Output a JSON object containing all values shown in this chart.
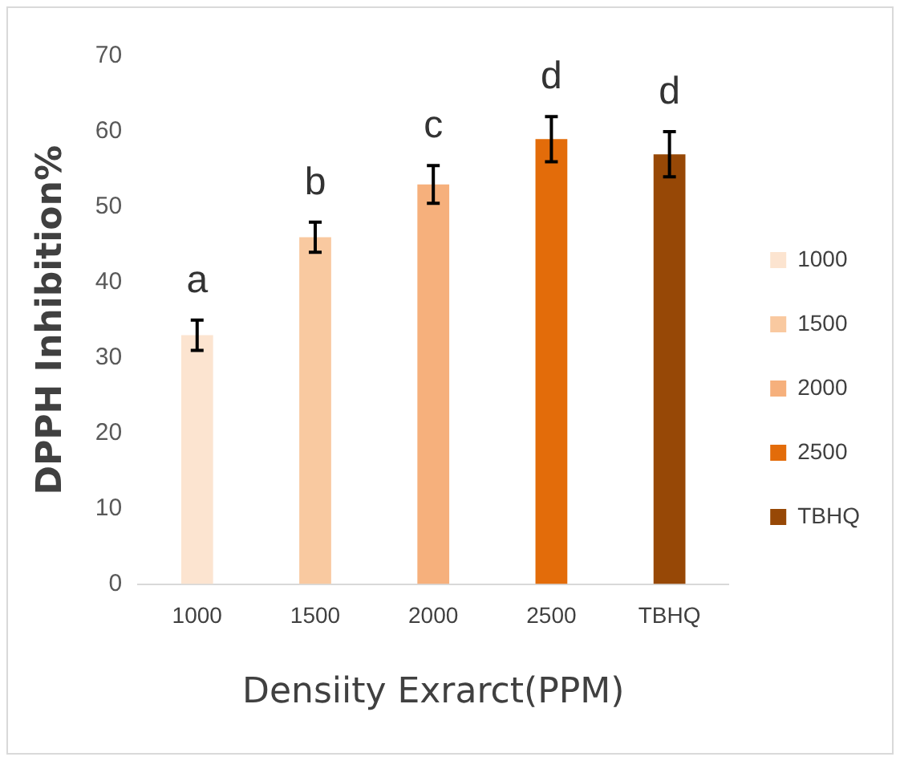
{
  "chart_data": {
    "type": "bar",
    "xlabel": "Densiity Exrarct(PPM)",
    "ylabel": "DPPH Inhibition%",
    "categories": [
      "1000",
      "1500",
      "2000",
      "2500",
      "TBHQ"
    ],
    "series": [
      {
        "name": "1000",
        "color": "#fce4d0",
        "values": [
          33,
          null,
          null,
          null,
          null
        ],
        "errors": [
          2,
          null,
          null,
          null,
          null
        ]
      },
      {
        "name": "1500",
        "color": "#f9c9a0",
        "values": [
          null,
          46,
          null,
          null,
          null
        ],
        "errors": [
          null,
          2,
          null,
          null,
          null
        ]
      },
      {
        "name": "2000",
        "color": "#f6b07c",
        "values": [
          null,
          null,
          53,
          null,
          null
        ],
        "errors": [
          null,
          null,
          2.5,
          null,
          null
        ]
      },
      {
        "name": "2500",
        "color": "#e36c0a",
        "values": [
          null,
          null,
          null,
          59,
          null
        ],
        "errors": [
          null,
          null,
          null,
          3,
          null
        ]
      },
      {
        "name": "TBHQ",
        "color": "#974806",
        "values": [
          null,
          null,
          null,
          null,
          57
        ],
        "errors": [
          null,
          null,
          null,
          null,
          3
        ]
      }
    ],
    "ylim": [
      0,
      70
    ],
    "yticks": [
      0,
      10,
      20,
      30,
      40,
      50,
      60,
      70
    ],
    "grid": false,
    "legend": "right",
    "annotations": [
      {
        "text": "a",
        "x": "1000",
        "y": 35
      },
      {
        "text": "b",
        "x": "1500",
        "y": 48
      },
      {
        "text": "c",
        "x": "2000",
        "y": 55.5
      },
      {
        "text": "d",
        "x": "2500",
        "y": 62
      },
      {
        "text": "d",
        "x": "TBHQ",
        "y": 60
      }
    ]
  }
}
